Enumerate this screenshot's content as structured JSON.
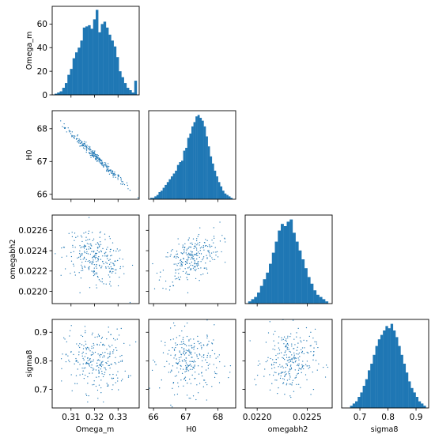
{
  "chart_data": {
    "type": "corner",
    "color": "#1f77b4",
    "variables": [
      "Omega_m",
      "H0",
      "omegabh2",
      "sigma8"
    ],
    "ranges": {
      "Omega_m": [
        0.302,
        0.339
      ],
      "H0": [
        65.85,
        68.55
      ],
      "omegabh2": [
        0.02188,
        0.02275
      ],
      "sigma8": [
        0.635,
        0.945
      ]
    },
    "histograms": {
      "Omega_m": {
        "bin_min": 0.303,
        "bin_max": 0.338,
        "counts": [
          1,
          2,
          3,
          6,
          10,
          17,
          22,
          31,
          36,
          40,
          46,
          57,
          58,
          59,
          56,
          64,
          72,
          53,
          60,
          62,
          57,
          51,
          46,
          41,
          32,
          20,
          15,
          10,
          6,
          4,
          2,
          12
        ],
        "yticks": [
          0,
          20,
          40,
          60
        ],
        "ylim": [
          0,
          75
        ]
      },
      "H0": {
        "bin_min": 65.9,
        "bin_max": 68.45,
        "counts": [
          1,
          1,
          2,
          3,
          5,
          6,
          8,
          10,
          12,
          14,
          16,
          18,
          20,
          24,
          26,
          27,
          34,
          36,
          43,
          46,
          51,
          54,
          58,
          59,
          57,
          55,
          51,
          44,
          37,
          30,
          25,
          20,
          16,
          12,
          9,
          6,
          4,
          3,
          2,
          1
        ],
        "ylim": [
          0,
          62
        ]
      },
      "omegabh2": {
        "bin_min": 0.02191,
        "bin_max": 0.02271,
        "counts": [
          1,
          2,
          3,
          5,
          8,
          11,
          14,
          18,
          23,
          28,
          33,
          36,
          35,
          37,
          38,
          32,
          28,
          24,
          20,
          16,
          12,
          9,
          6,
          4,
          3,
          2,
          1
        ],
        "ylim": [
          0,
          40
        ]
      },
      "sigma8": {
        "bin_min": 0.665,
        "bin_max": 0.935,
        "counts": [
          1,
          2,
          3,
          5,
          7,
          10,
          13,
          17,
          20,
          24,
          28,
          31,
          33,
          35,
          37,
          36,
          38,
          35,
          32,
          28,
          24,
          20,
          16,
          12,
          9,
          7,
          5,
          3,
          2,
          1
        ],
        "ylim": [
          0,
          40
        ]
      }
    },
    "ticks": {
      "Omega_m": [
        0.31,
        0.32,
        0.33
      ],
      "H0": [
        66,
        67,
        68
      ],
      "omegabh2": [
        0.022,
        0.0225
      ],
      "sigma8": [
        0.7,
        0.8,
        0.9
      ]
    },
    "yticks_rows": {
      "H0": [
        66,
        67,
        68
      ],
      "omegabh2": [
        0.022,
        0.0222,
        0.0224,
        0.0226
      ],
      "sigma8": [
        0.7,
        0.8,
        0.9
      ]
    },
    "tick_labels": {
      "Omega_m": [
        "0.31",
        "0.32",
        "0.33"
      ],
      "H0": [
        "66",
        "67",
        "68"
      ],
      "omegabh2_x": [
        "0.0220",
        "0.0225"
      ],
      "omegabh2_y": [
        "0.0220",
        "0.0222",
        "0.0224",
        "0.0226"
      ],
      "sigma8": [
        "0.7",
        "0.8",
        "0.9"
      ],
      "hist_Omega_m_y": [
        "0",
        "20",
        "40",
        "60"
      ]
    },
    "scatter_samples": 260,
    "correlations": {
      "H0|Omega_m": -0.99,
      "omegabh2|Omega_m": -0.45,
      "omegabh2|H0": 0.5,
      "sigma8|Omega_m": 0.0,
      "sigma8|H0": 0.0,
      "sigma8|omegabh2": 0.0
    },
    "scatter_center": {
      "Omega_m": 0.3205,
      "H0": 67.15,
      "omegabh2": 0.02232,
      "sigma8": 0.8
    },
    "scatter_sd": {
      "Omega_m": 0.0065,
      "H0": 0.45,
      "omegabh2": 0.00013,
      "sigma8": 0.055
    }
  }
}
